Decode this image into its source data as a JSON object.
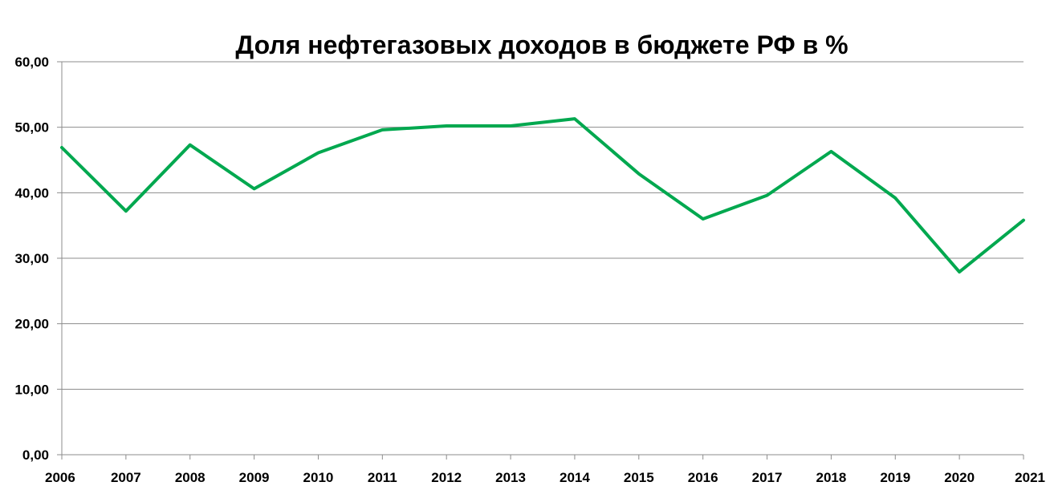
{
  "chart_data": {
    "type": "line",
    "title": "Доля нефтегазовых доходов в бюджете РФ в %",
    "xlabel": "",
    "ylabel": "",
    "x": [
      "2006",
      "2007",
      "2008",
      "2009",
      "2010",
      "2011",
      "2012",
      "2013",
      "2014",
      "2015",
      "2016",
      "2017",
      "2018",
      "2019",
      "2020",
      "2021"
    ],
    "series": [
      {
        "values": [
          46.9,
          37.2,
          47.3,
          40.6,
          46.1,
          49.6,
          50.2,
          50.2,
          51.3,
          42.9,
          36.0,
          39.6,
          46.3,
          39.2,
          27.9,
          35.8
        ]
      }
    ],
    "ylim": [
      0,
      60
    ],
    "yticks": [
      0,
      10,
      20,
      30,
      40,
      50,
      60
    ],
    "ytick_labels": [
      "0,00",
      "10,00",
      "20,00",
      "30,00",
      "40,00",
      "50,00",
      "60,00"
    ],
    "grid": true,
    "legend": "none",
    "line_color": "#00A84F"
  }
}
